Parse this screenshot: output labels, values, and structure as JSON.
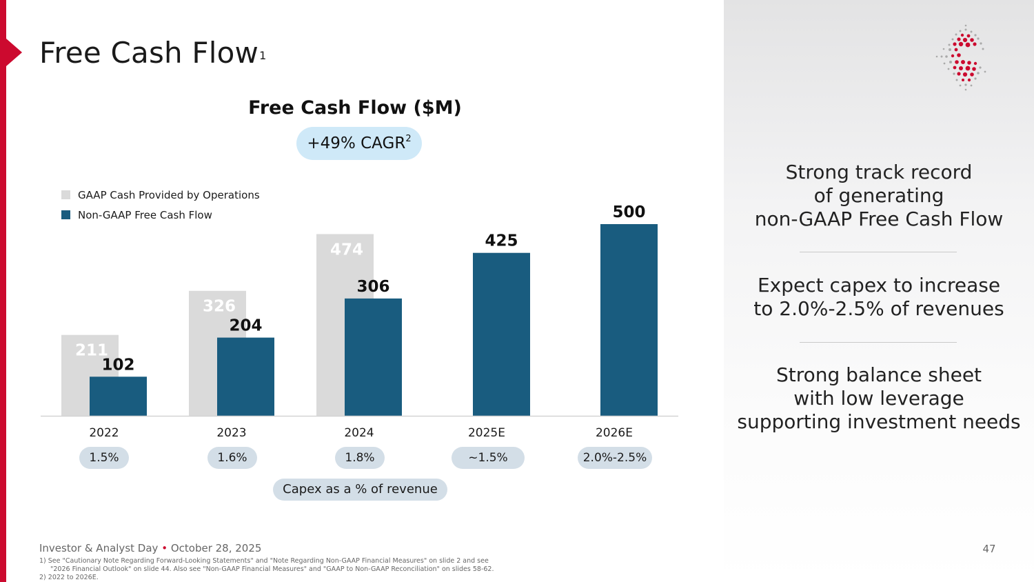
{
  "slide": {
    "title": "Free Cash Flow",
    "title_superscript": "1",
    "page_number": "47"
  },
  "colors": {
    "brand_red": "#cc0a2f",
    "gaap_bar": "#dadada",
    "fcf_bar": "#195c7f",
    "pill_blue": "#cfe9f8",
    "pill_gray": "#d3dee7"
  },
  "chart_header": {
    "title": "Free Cash Flow ($M)",
    "cagr_label": "+49% CAGR",
    "cagr_superscript": "2"
  },
  "chart_data": {
    "type": "bar",
    "title": "Free Cash Flow ($M)",
    "categories": [
      "2022",
      "2023",
      "2024",
      "2025E",
      "2026E"
    ],
    "series": [
      {
        "name": "GAAP Cash Provided by Operations",
        "values": [
          211,
          326,
          474,
          null,
          null
        ],
        "labels": [
          "211",
          "326",
          "474",
          "",
          ""
        ]
      },
      {
        "name": "Non-GAAP Free Cash Flow",
        "values": [
          102,
          204,
          306,
          425,
          500
        ],
        "labels": [
          "102",
          "204",
          "306",
          "425",
          "500"
        ]
      }
    ],
    "ylim": [
      0,
      500
    ],
    "grid": false,
    "legend_position": "top-left",
    "xlabel": "",
    "ylabel": ""
  },
  "capex": {
    "values": [
      "1.5%",
      "1.6%",
      "1.8%",
      "~1.5%",
      "2.0%-2.5%"
    ],
    "label": "Capex as a % of revenue"
  },
  "panel": {
    "point1": [
      "Strong track record",
      "of generating",
      "non-GAAP Free Cash Flow"
    ],
    "point2": [
      "Expect capex to increase",
      "to 2.0%-2.5% of revenues"
    ],
    "point3": [
      "Strong balance sheet",
      "with low leverage",
      "supporting investment needs"
    ]
  },
  "footer": {
    "event": "Investor & Analyst Day",
    "date": "October 28, 2025",
    "separator": "•",
    "footnote1_line1": "1)  See \"Cautionary Note Regarding Forward-Looking Statements\" and \"Note Regarding Non-GAAP Financial Measures\" on slide 2 and see",
    "footnote1_line2": "\"2026 Financial Outlook\" on slide 44. Also see \"Non-GAAP Financial Measures\" and \"GAAP to Non-GAAP Reconciliation\" on slides 58-62.",
    "footnote2": "2)  2022 to 2026E."
  },
  "logo": {
    "icon": "starburst-logo-icon"
  }
}
